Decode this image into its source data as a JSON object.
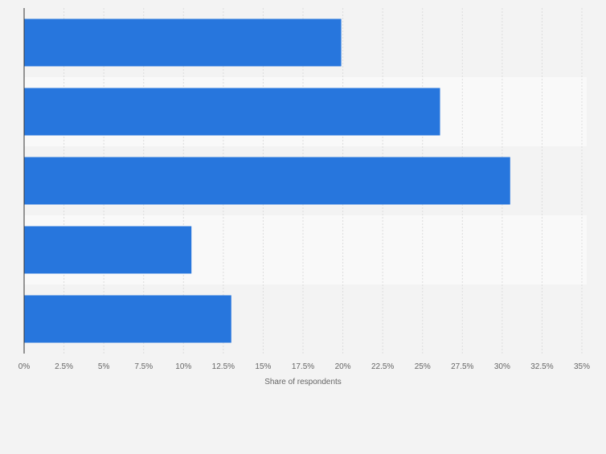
{
  "chart_data": {
    "type": "bar",
    "orientation": "horizontal",
    "categories": [
      "",
      "",
      "",
      "",
      ""
    ],
    "values": [
      19.9,
      26.1,
      30.5,
      10.5,
      13.0
    ],
    "xlabel": "Share of respondents",
    "ylabel": "",
    "xlim": [
      0,
      35
    ],
    "ticks": [
      "0%",
      "2.5%",
      "5%",
      "7.5%",
      "10%",
      "12.5%",
      "15%",
      "17.5%",
      "20%",
      "22.5%",
      "25%",
      "27.5%",
      "30%",
      "32.5%",
      "35%"
    ],
    "grid": true,
    "colors": {
      "bar": "#2776dd",
      "background": "#f3f3f3",
      "band_alt": "#f9f9f9",
      "grid": "#dddddd",
      "axis": "#333333",
      "tick_text": "#666666"
    }
  }
}
